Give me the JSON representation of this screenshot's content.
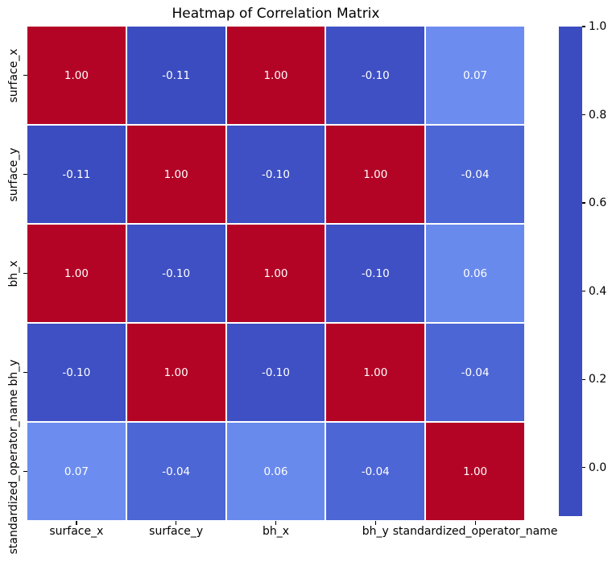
{
  "title": "Heatmap of Correlation Matrix",
  "chart_data": {
    "type": "heatmap",
    "categories": [
      "surface_x",
      "surface_y",
      "bh_x",
      "bh_y",
      "standardized_operator_name"
    ],
    "matrix": [
      [
        1.0,
        -0.11,
        1.0,
        -0.1,
        0.07
      ],
      [
        -0.11,
        1.0,
        -0.1,
        1.0,
        -0.04
      ],
      [
        1.0,
        -0.1,
        1.0,
        -0.1,
        0.06
      ],
      [
        -0.1,
        1.0,
        -0.1,
        1.0,
        -0.04
      ],
      [
        0.07,
        -0.04,
        0.06,
        -0.04,
        1.0
      ]
    ],
    "title": "Heatmap of Correlation Matrix",
    "xlabel": "",
    "ylabel": "",
    "vmin": -0.11,
    "vmax": 1.0,
    "grid": false,
    "legend_position": "colorbar-right",
    "colorbar_ticks": [
      "1.0",
      "0.8",
      "0.6",
      "0.4",
      "0.2",
      "0.0"
    ],
    "colorbar_tick_values": [
      1.0,
      0.8,
      0.6,
      0.4,
      0.2,
      0.0
    ],
    "annotation_text_color": "#ffffff",
    "cell_border_color": "#ffffff",
    "colormap": {
      "name": "coolwarm",
      "anchors": [
        [
          0.0,
          "#3b4cc0"
        ],
        [
          0.1,
          "#5876e2"
        ],
        [
          0.2,
          "#789bf7"
        ],
        [
          0.3,
          "#95bafe"
        ],
        [
          0.4,
          "#b1cefa"
        ],
        [
          0.5,
          "#dddcdb"
        ],
        [
          0.6,
          "#f5cab5"
        ],
        [
          0.7,
          "#f2a88b"
        ],
        [
          0.8,
          "#e57f62"
        ],
        [
          0.9,
          "#d0463d"
        ],
        [
          1.0,
          "#b40426"
        ]
      ]
    }
  }
}
